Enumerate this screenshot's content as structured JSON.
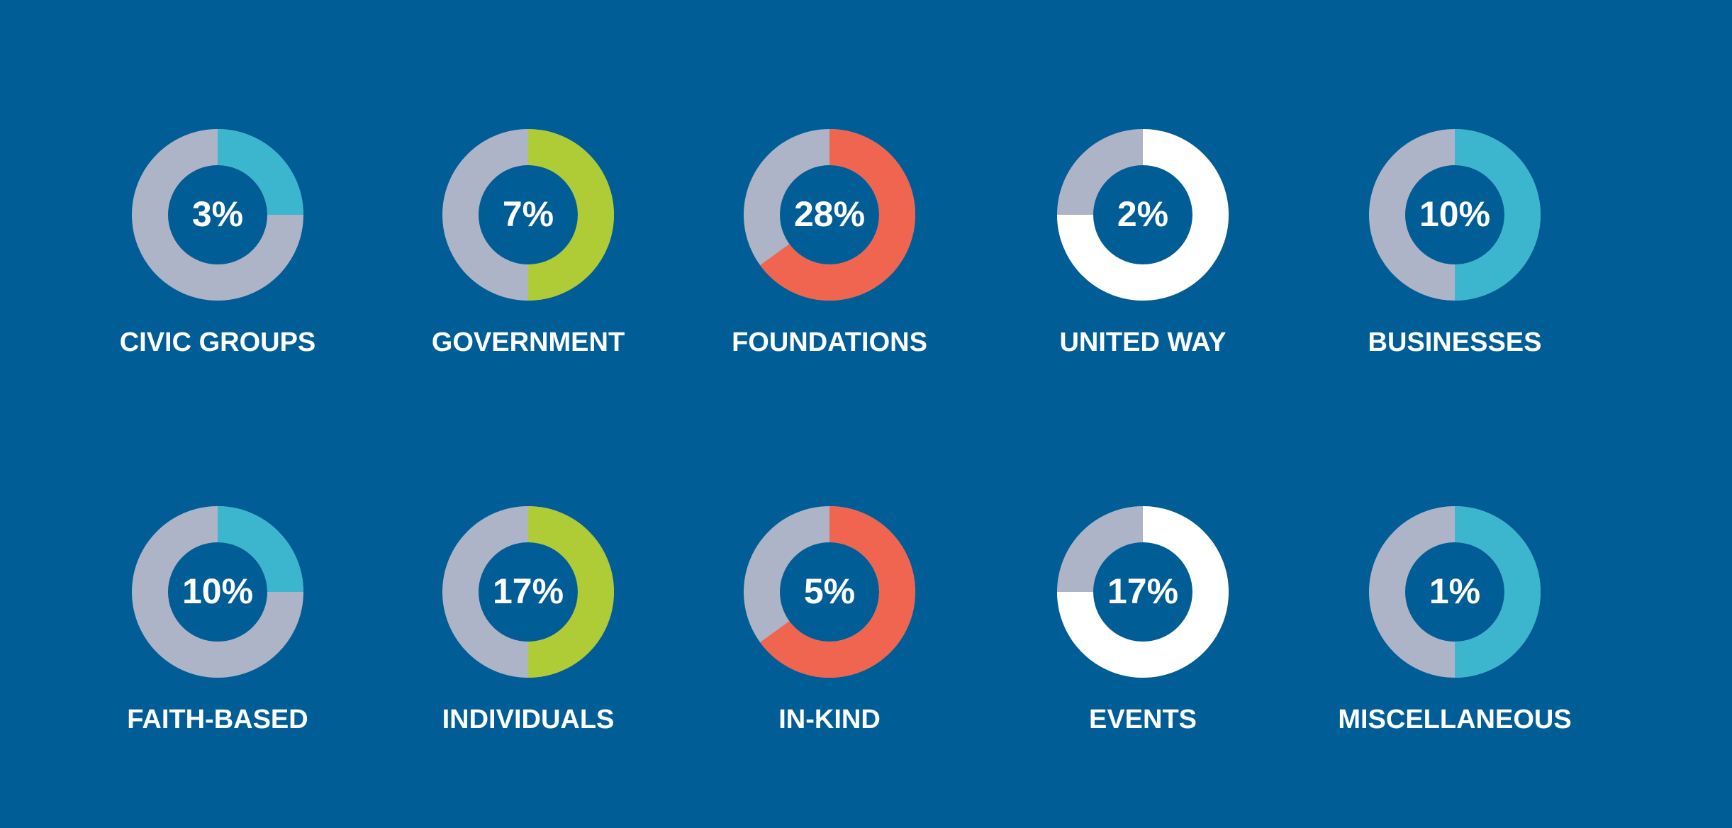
{
  "chart_data": {
    "type": "pie",
    "title": "",
    "colors": {
      "background": "#005d95",
      "track": "#aeb4c8",
      "center_fill": "#005d95",
      "text": "#ffffff"
    },
    "items": [
      {
        "label": "CIVIC GROUPS",
        "value": 3,
        "display": "3%",
        "arc_fraction": 0.25,
        "color": "#3cb5cf"
      },
      {
        "label": "GOVERNMENT",
        "value": 7,
        "display": "7%",
        "arc_fraction": 0.5,
        "color": "#afcb35"
      },
      {
        "label": "FOUNDATIONS",
        "value": 28,
        "display": "28%",
        "arc_fraction": 0.65,
        "color": "#f0654f"
      },
      {
        "label": "UNITED WAY",
        "value": 2,
        "display": "2%",
        "arc_fraction": 0.75,
        "color": "#ffffff"
      },
      {
        "label": "BUSINESSES",
        "value": 10,
        "display": "10%",
        "arc_fraction": 0.5,
        "color": "#3cb5cf"
      },
      {
        "label": "FAITH-BASED",
        "value": 10,
        "display": "10%",
        "arc_fraction": 0.25,
        "color": "#3cb5cf"
      },
      {
        "label": "INDIVIDUALS",
        "value": 17,
        "display": "17%",
        "arc_fraction": 0.5,
        "color": "#afcb35"
      },
      {
        "label": "IN-KIND",
        "value": 5,
        "display": "5%",
        "arc_fraction": 0.65,
        "color": "#f0654f"
      },
      {
        "label": "EVENTS",
        "value": 17,
        "display": "17%",
        "arc_fraction": 0.75,
        "color": "#ffffff"
      },
      {
        "label": "MISCELLANEOUS",
        "value": 1,
        "display": "1%",
        "arc_fraction": 0.5,
        "color": "#3cb5cf"
      }
    ]
  }
}
